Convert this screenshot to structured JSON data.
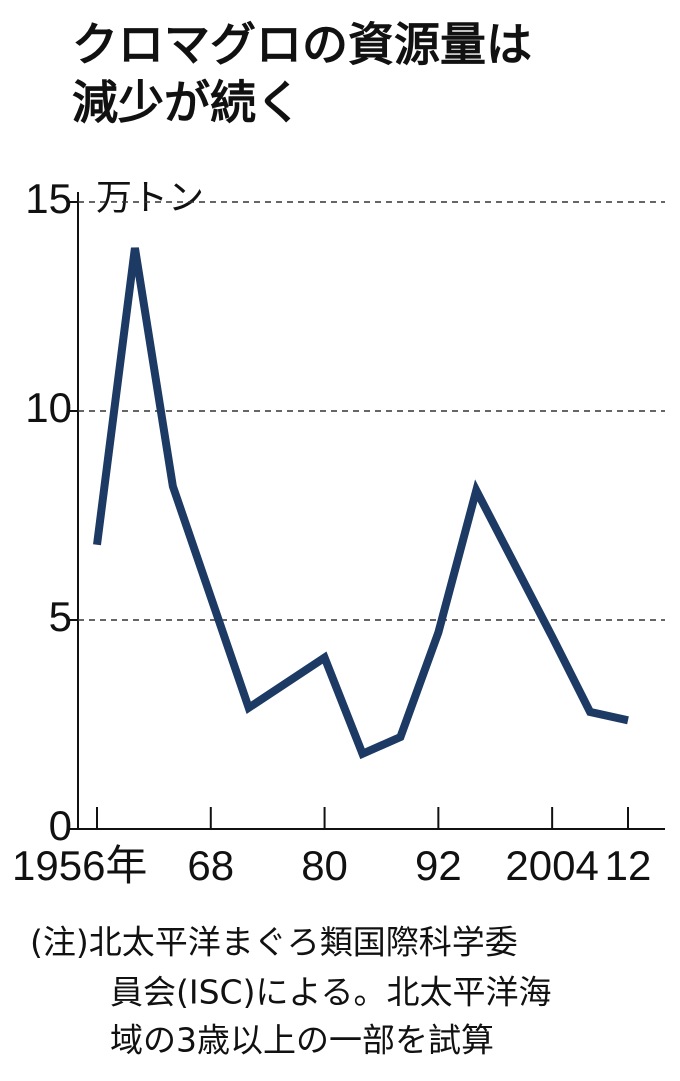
{
  "chart_data": {
    "type": "line",
    "title": [
      "クロマグロの資源量は",
      "減少が続く"
    ],
    "unit": "万トン",
    "x": [
      1956,
      1960,
      1964,
      1972,
      1980,
      1984,
      1988,
      1992,
      1996,
      2004,
      2008,
      2012
    ],
    "series": [
      {
        "color": "#1c3a63",
        "values": [
          6.8,
          13.9,
          8.2,
          2.9,
          4.1,
          1.8,
          2.2,
          4.7,
          8.1,
          4.6,
          2.8,
          2.6
        ]
      }
    ],
    "xlim": [
      1956,
      2012
    ],
    "xticks": [
      {
        "value": 1956,
        "label": "1956年"
      },
      {
        "value": 1968,
        "label": "68"
      },
      {
        "value": 1980,
        "label": "80"
      },
      {
        "value": 1992,
        "label": "92"
      },
      {
        "value": 2004,
        "label": "2004"
      },
      {
        "value": 2012,
        "label": "12"
      }
    ],
    "ylim": [
      0,
      15
    ],
    "yticks": [
      0,
      5,
      10,
      15
    ],
    "grid": true,
    "note": [
      "(注)北太平洋まぐろ類国際科学委",
      "員会(ISC)による。北太平洋海",
      "域の3歳以上の一部を試算"
    ]
  }
}
